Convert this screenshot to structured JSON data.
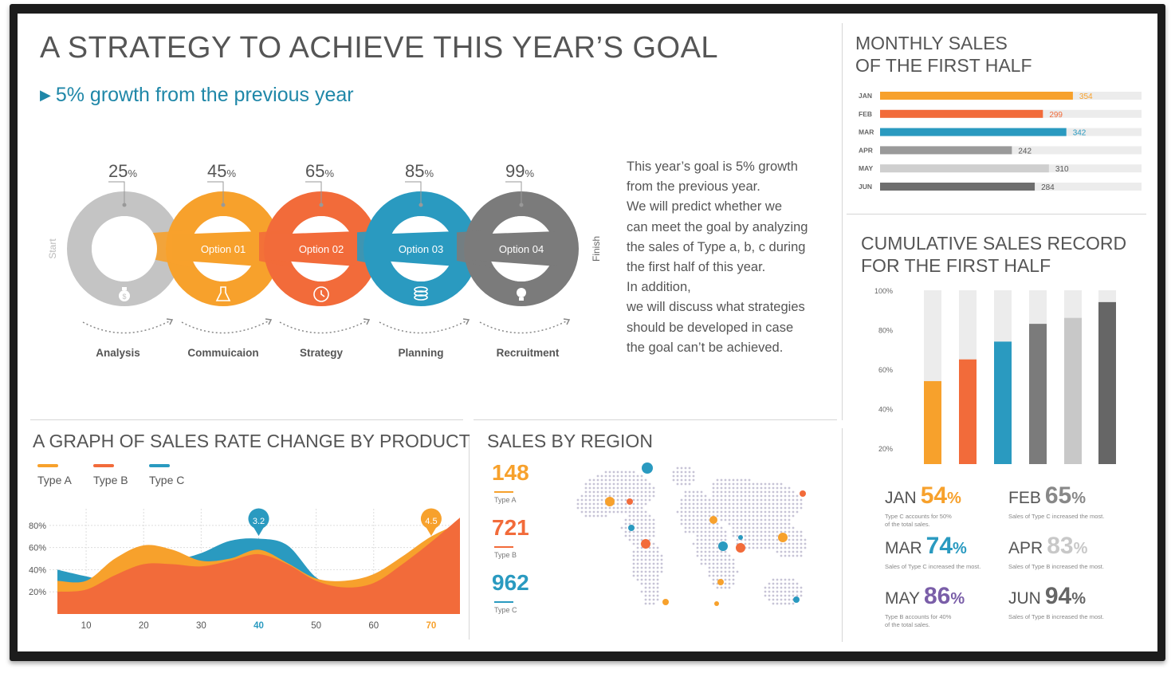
{
  "header": {
    "title": "A STRATEGY TO ACHIEVE THIS YEAR’S GOAL",
    "subtitle": "5% growth from the previous year"
  },
  "process": {
    "start_label": "Start",
    "finish_label": "Finish",
    "percent_sign": "%",
    "steps": [
      {
        "percent": "25",
        "band": "",
        "label": "Analysis",
        "color": "#c4c4c4",
        "icon": "money-bag-icon"
      },
      {
        "percent": "45",
        "band": "Option 01",
        "label": "Commuicaion",
        "color": "#f7a12c",
        "icon": "flask-icon"
      },
      {
        "percent": "65",
        "band": "Option 02",
        "label": "Strategy",
        "color": "#f26b3a",
        "icon": "clock-icon"
      },
      {
        "percent": "85",
        "band": "Option 03",
        "label": "Planning",
        "color": "#2a9ac0",
        "icon": "database-icon"
      },
      {
        "percent": "99",
        "band": "Option 04",
        "label": "Recruitment",
        "color": "#7b7b7b",
        "icon": "lightbulb-icon"
      }
    ]
  },
  "description": {
    "lines": [
      "This year’s goal is 5% growth",
      "from the previous year.",
      "We will predict whether we",
      "can meet the goal by analyzing",
      "the sales of Type a, b, c during",
      "the first half of this year.",
      "In addition,",
      "we will discuss what strategies",
      "should be developed in case",
      "the goal can’t be achieved."
    ]
  },
  "monthly": {
    "title_line1": "MONTHLY SALES",
    "title_line2": "OF THE FIRST HALF"
  },
  "cumulative": {
    "title_line1": "CUMULATIVE SALES RECORD",
    "title_line2": "FOR THE FIRST HALF"
  },
  "rate": {
    "title": "A GRAPH OF SALES RATE CHANGE BY PRODUCT"
  },
  "region": {
    "title": "SALES BY REGION",
    "items": [
      {
        "value": "148",
        "label": "Type A",
        "color": "#f7a12c"
      },
      {
        "value": "721",
        "label": "Type B",
        "color": "#f26b3a"
      },
      {
        "value": "962",
        "label": "Type C",
        "color": "#2a9ac0"
      }
    ]
  },
  "stats": [
    {
      "month": "JAN",
      "pct": "54",
      "color": "#f7a12c",
      "desc1": "Type C accounts for 50%",
      "desc2": "of the total sales."
    },
    {
      "month": "FEB",
      "pct": "65",
      "color": "#888888",
      "desc1": "Sales of Type C increased the most.",
      "desc2": ""
    },
    {
      "month": "MAR",
      "pct": "74",
      "color": "#2a9ac0",
      "desc1": "Sales of Type C increased the most.",
      "desc2": ""
    },
    {
      "month": "APR",
      "pct": "83",
      "color": "#c8c8c8",
      "desc1": "Sales of Type B increased the most.",
      "desc2": ""
    },
    {
      "month": "MAY",
      "pct": "86",
      "color": "#7a5ea8",
      "desc1": "Type B accounts for 40%",
      "desc2": "of the total sales."
    },
    {
      "month": "JUN",
      "pct": "94",
      "color": "#666666",
      "desc1": "Sales of Type B increased the most.",
      "desc2": ""
    }
  ],
  "chart_data": [
    {
      "type": "bar",
      "orientation": "horizontal",
      "title": "MONTHLY SALES OF THE FIRST HALF",
      "categories": [
        "JAN",
        "FEB",
        "MAR",
        "APR",
        "MAY",
        "JUN"
      ],
      "values": [
        354,
        299,
        342,
        242,
        310,
        284
      ],
      "colors": [
        "#f7a12c",
        "#f26b3a",
        "#2a9ac0",
        "#9a9a9a",
        "#cfcfcf",
        "#6e6e6e"
      ],
      "xlim": [
        0,
        480
      ],
      "data_labels": true
    },
    {
      "type": "bar",
      "title": "CUMULATIVE SALES RECORD FOR THE FIRST HALF",
      "categories": [
        "JAN",
        "FEB",
        "MAR",
        "APR",
        "MAY",
        "JUN"
      ],
      "values": [
        54,
        65,
        74,
        83,
        86,
        94
      ],
      "colors": [
        "#f7a12c",
        "#f26b3a",
        "#2a9ac0",
        "#7b7b7b",
        "#c8c8c8",
        "#666666"
      ],
      "yticks": [
        "20%",
        "40%",
        "60%",
        "80%",
        "100%"
      ],
      "ylim": [
        12,
        100
      ]
    },
    {
      "type": "area",
      "title": "A GRAPH OF SALES RATE CHANGE BY PRODUCT",
      "x": [
        5,
        10,
        15,
        20,
        25,
        30,
        35,
        40,
        45,
        50,
        55,
        60,
        65,
        70,
        75
      ],
      "xticks": [
        10,
        20,
        30,
        40,
        50,
        60,
        70
      ],
      "yticks": [
        "20%",
        "40%",
        "60%",
        "80%"
      ],
      "ylim": [
        0,
        95
      ],
      "xlim": [
        5,
        75
      ],
      "series": [
        {
          "name": "Type A",
          "color": "#f7a12c",
          "values": [
            30,
            30,
            50,
            62,
            58,
            48,
            50,
            58,
            46,
            32,
            30,
            36,
            52,
            70,
            82
          ]
        },
        {
          "name": "Type B",
          "color": "#f26b3a",
          "values": [
            20,
            22,
            35,
            45,
            45,
            43,
            48,
            54,
            45,
            30,
            24,
            28,
            45,
            65,
            87
          ]
        },
        {
          "name": "Type C",
          "color": "#2a9ac0",
          "values": [
            40,
            34,
            30,
            45,
            48,
            55,
            66,
            68,
            62,
            33,
            22,
            25,
            30,
            36,
            40
          ]
        }
      ],
      "annotations": [
        {
          "x": 40,
          "text": "3.2",
          "color": "#2a9ac0"
        },
        {
          "x": 70,
          "text": "4.5",
          "color": "#f7a12c"
        }
      ],
      "highlight_ticks": [
        {
          "x": 40,
          "color": "#2a9ac0"
        },
        {
          "x": 70,
          "color": "#f7a12c"
        }
      ]
    }
  ]
}
